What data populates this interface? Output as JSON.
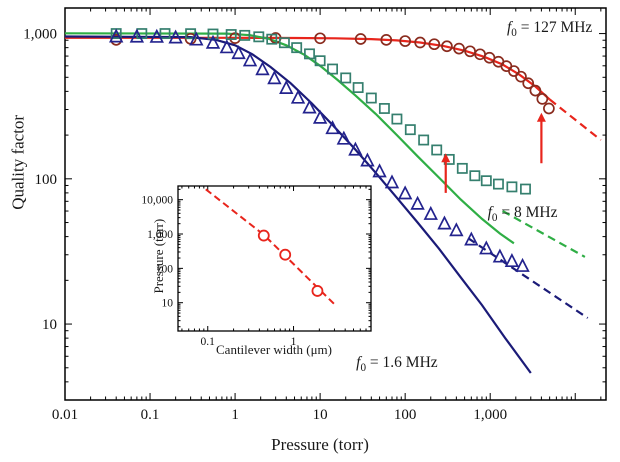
{
  "figure": {
    "bg": "#ffffff",
    "frame_color": "#000000",
    "text_color": "#1a1a1a"
  },
  "chart_data": {
    "type": "scatter",
    "main": {
      "xlabel": "Pressure (torr)",
      "ylabel": "Quality factor",
      "xlim": [
        0.01,
        23000
      ],
      "ylim": [
        3,
        1500
      ],
      "grid": false,
      "x_ticks": [
        {
          "v": 0.01,
          "label": "0.01"
        },
        {
          "v": 0.1,
          "label": "0.1"
        },
        {
          "v": 1,
          "label": "1"
        },
        {
          "v": 10,
          "label": "10"
        },
        {
          "v": 100,
          "label": "100"
        },
        {
          "v": 1000,
          "label": "1,000"
        }
      ],
      "y_ticks": [
        {
          "v": 10,
          "label": "10"
        },
        {
          "v": 100,
          "label": "100"
        },
        {
          "v": 1000,
          "label": "1,000"
        }
      ],
      "series": [
        {
          "key": "f0-127mhz",
          "name": "f0 = 127 MHz cantilever",
          "marker": "circle",
          "marker_color": "#8a2b1e",
          "line_color": "#e8251c",
          "label": {
            "var": "f",
            "sub": "0",
            "text": " = 127 MHz"
          },
          "label_at": [
            5000,
            1080
          ],
          "points": [
            [
              0.04,
              905
            ],
            [
              0.3,
              920
            ],
            [
              1,
              930
            ],
            [
              3,
              932
            ],
            [
              10,
              928
            ],
            [
              30,
              918
            ],
            [
              60,
              905
            ],
            [
              100,
              888
            ],
            [
              150,
              868
            ],
            [
              220,
              845
            ],
            [
              310,
              818
            ],
            [
              430,
              788
            ],
            [
              580,
              755
            ],
            [
              760,
              720
            ],
            [
              980,
              682
            ],
            [
              1250,
              640
            ],
            [
              1550,
              597
            ],
            [
              1900,
              552
            ],
            [
              2300,
              505
            ],
            [
              2800,
              455
            ],
            [
              3400,
              405
            ],
            [
              4100,
              355
            ],
            [
              4900,
              305
            ]
          ],
          "fit_solid": [
            [
              0.01,
              935
            ],
            [
              1,
              935
            ],
            [
              5,
              933
            ],
            [
              15,
              928
            ],
            [
              40,
              916
            ],
            [
              80,
              898
            ],
            [
              150,
              868
            ],
            [
              280,
              822
            ],
            [
              500,
              762
            ],
            [
              850,
              692
            ],
            [
              1400,
              612
            ],
            [
              2200,
              522
            ],
            [
              3400,
              432
            ],
            [
              5000,
              352
            ]
          ],
          "fit_dashed": [
            [
              5000,
              352
            ],
            [
              20000,
              185
            ]
          ]
        },
        {
          "key": "f0-8mhz",
          "name": "f0 = 8 MHz cantilever",
          "marker": "square",
          "marker_color": "#357f6e",
          "line_color": "#2fae45",
          "label": {
            "var": "f",
            "sub": "0",
            "text": " = 8 MHz"
          },
          "label_at": [
            2400,
            57
          ],
          "points": [
            [
              0.04,
              1000
            ],
            [
              0.08,
              1000
            ],
            [
              0.15,
              1000
            ],
            [
              0.3,
              998
            ],
            [
              0.55,
              993
            ],
            [
              0.9,
              985
            ],
            [
              1.3,
              972
            ],
            [
              1.9,
              950
            ],
            [
              2.7,
              915
            ],
            [
              3.8,
              865
            ],
            [
              5.3,
              800
            ],
            [
              7.5,
              725
            ],
            [
              10,
              650
            ],
            [
              14,
              570
            ],
            [
              20,
              495
            ],
            [
              28,
              425
            ],
            [
              40,
              360
            ],
            [
              57,
              305
            ],
            [
              80,
              258
            ],
            [
              115,
              218
            ],
            [
              165,
              185
            ],
            [
              235,
              158
            ],
            [
              330,
              136
            ],
            [
              470,
              118
            ],
            [
              660,
              105
            ],
            [
              900,
              97
            ],
            [
              1250,
              92
            ],
            [
              1800,
              88
            ],
            [
              2600,
              85
            ]
          ],
          "fit_solid": [
            [
              0.01,
              1005
            ],
            [
              0.8,
              1000
            ],
            [
              1.5,
              975
            ],
            [
              2.5,
              920
            ],
            [
              4,
              830
            ],
            [
              6.5,
              715
            ],
            [
              10,
              600
            ],
            [
              16,
              480
            ],
            [
              26,
              375
            ],
            [
              45,
              280
            ],
            [
              80,
              200
            ],
            [
              140,
              143
            ],
            [
              250,
              102
            ],
            [
              450,
              72
            ],
            [
              800,
              53
            ],
            [
              1300,
              42
            ],
            [
              1900,
              36
            ]
          ],
          "fit_dashed": [
            [
              1400,
              60
            ],
            [
              13000,
              29
            ]
          ]
        },
        {
          "key": "f0-1p6mhz",
          "name": "f0 = 1.6 MHz cantilever",
          "marker": "triangle",
          "marker_color": "#23238e",
          "line_color": "#1b1b78",
          "label": {
            "var": "f",
            "sub": "0",
            "text": " = 1.6 MHz"
          },
          "label_at": [
            80,
            5.3
          ],
          "points": [
            [
              0.04,
              950
            ],
            [
              0.07,
              948
            ],
            [
              0.12,
              945
            ],
            [
              0.2,
              935
            ],
            [
              0.35,
              905
            ],
            [
              0.55,
              860
            ],
            [
              0.8,
              800
            ],
            [
              1.1,
              730
            ],
            [
              1.5,
              650
            ],
            [
              2.1,
              565
            ],
            [
              2.9,
              490
            ],
            [
              4,
              420
            ],
            [
              5.5,
              360
            ],
            [
              7.5,
              308
            ],
            [
              10,
              262
            ],
            [
              14,
              222
            ],
            [
              19,
              188
            ],
            [
              26,
              158
            ],
            [
              36,
              133
            ],
            [
              50,
              112
            ],
            [
              70,
              94
            ],
            [
              100,
              79
            ],
            [
              140,
              67
            ],
            [
              200,
              57
            ],
            [
              290,
              49
            ],
            [
              400,
              44
            ],
            [
              600,
              38
            ],
            [
              900,
              33
            ],
            [
              1300,
              29
            ],
            [
              1800,
              27
            ],
            [
              2400,
              25
            ]
          ],
          "fit_solid": [
            [
              0.01,
              955
            ],
            [
              0.3,
              945
            ],
            [
              0.6,
              905
            ],
            [
              1,
              830
            ],
            [
              1.6,
              720
            ],
            [
              2.6,
              590
            ],
            [
              4.5,
              455
            ],
            [
              8,
              330
            ],
            [
              14,
              235
            ],
            [
              25,
              163
            ],
            [
              45,
              110
            ],
            [
              80,
              74
            ],
            [
              140,
              50
            ],
            [
              250,
              33
            ],
            [
              450,
              21
            ],
            [
              800,
              13.5
            ],
            [
              1500,
              8
            ],
            [
              3000,
              4.6
            ]
          ],
          "fit_dashed": [
            [
              550,
              39
            ],
            [
              14000,
              11
            ]
          ]
        }
      ],
      "arrows": {
        "color": "#e8251c",
        "items": [
          {
            "x": 16,
            "from": 42,
            "to": 88
          },
          {
            "x": 300,
            "from": 80,
            "to": 150
          },
          {
            "x": 4000,
            "from": 128,
            "to": 285
          }
        ]
      }
    },
    "inset": {
      "xlabel": "Cantilever width (μm)",
      "ylabel": "Pressure (torr)",
      "xlim": [
        0.045,
        8
      ],
      "ylim": [
        1.5,
        25000
      ],
      "color": "#e8251c",
      "x_ticks": [
        {
          "v": 0.1,
          "label": "0.1"
        },
        {
          "v": 1,
          "label": "1"
        }
      ],
      "y_ticks": [
        {
          "v": 10,
          "label": "10"
        },
        {
          "v": 100,
          "label": "100"
        },
        {
          "v": 1000,
          "label": "1,000"
        },
        {
          "v": 10000,
          "label": "10,000"
        }
      ],
      "points": [
        [
          0.45,
          900
        ],
        [
          0.8,
          250
        ],
        [
          1.9,
          22
        ]
      ],
      "line": [
        [
          0.095,
          20000
        ],
        [
          0.45,
          950
        ],
        [
          3.0,
          9
        ]
      ]
    }
  }
}
